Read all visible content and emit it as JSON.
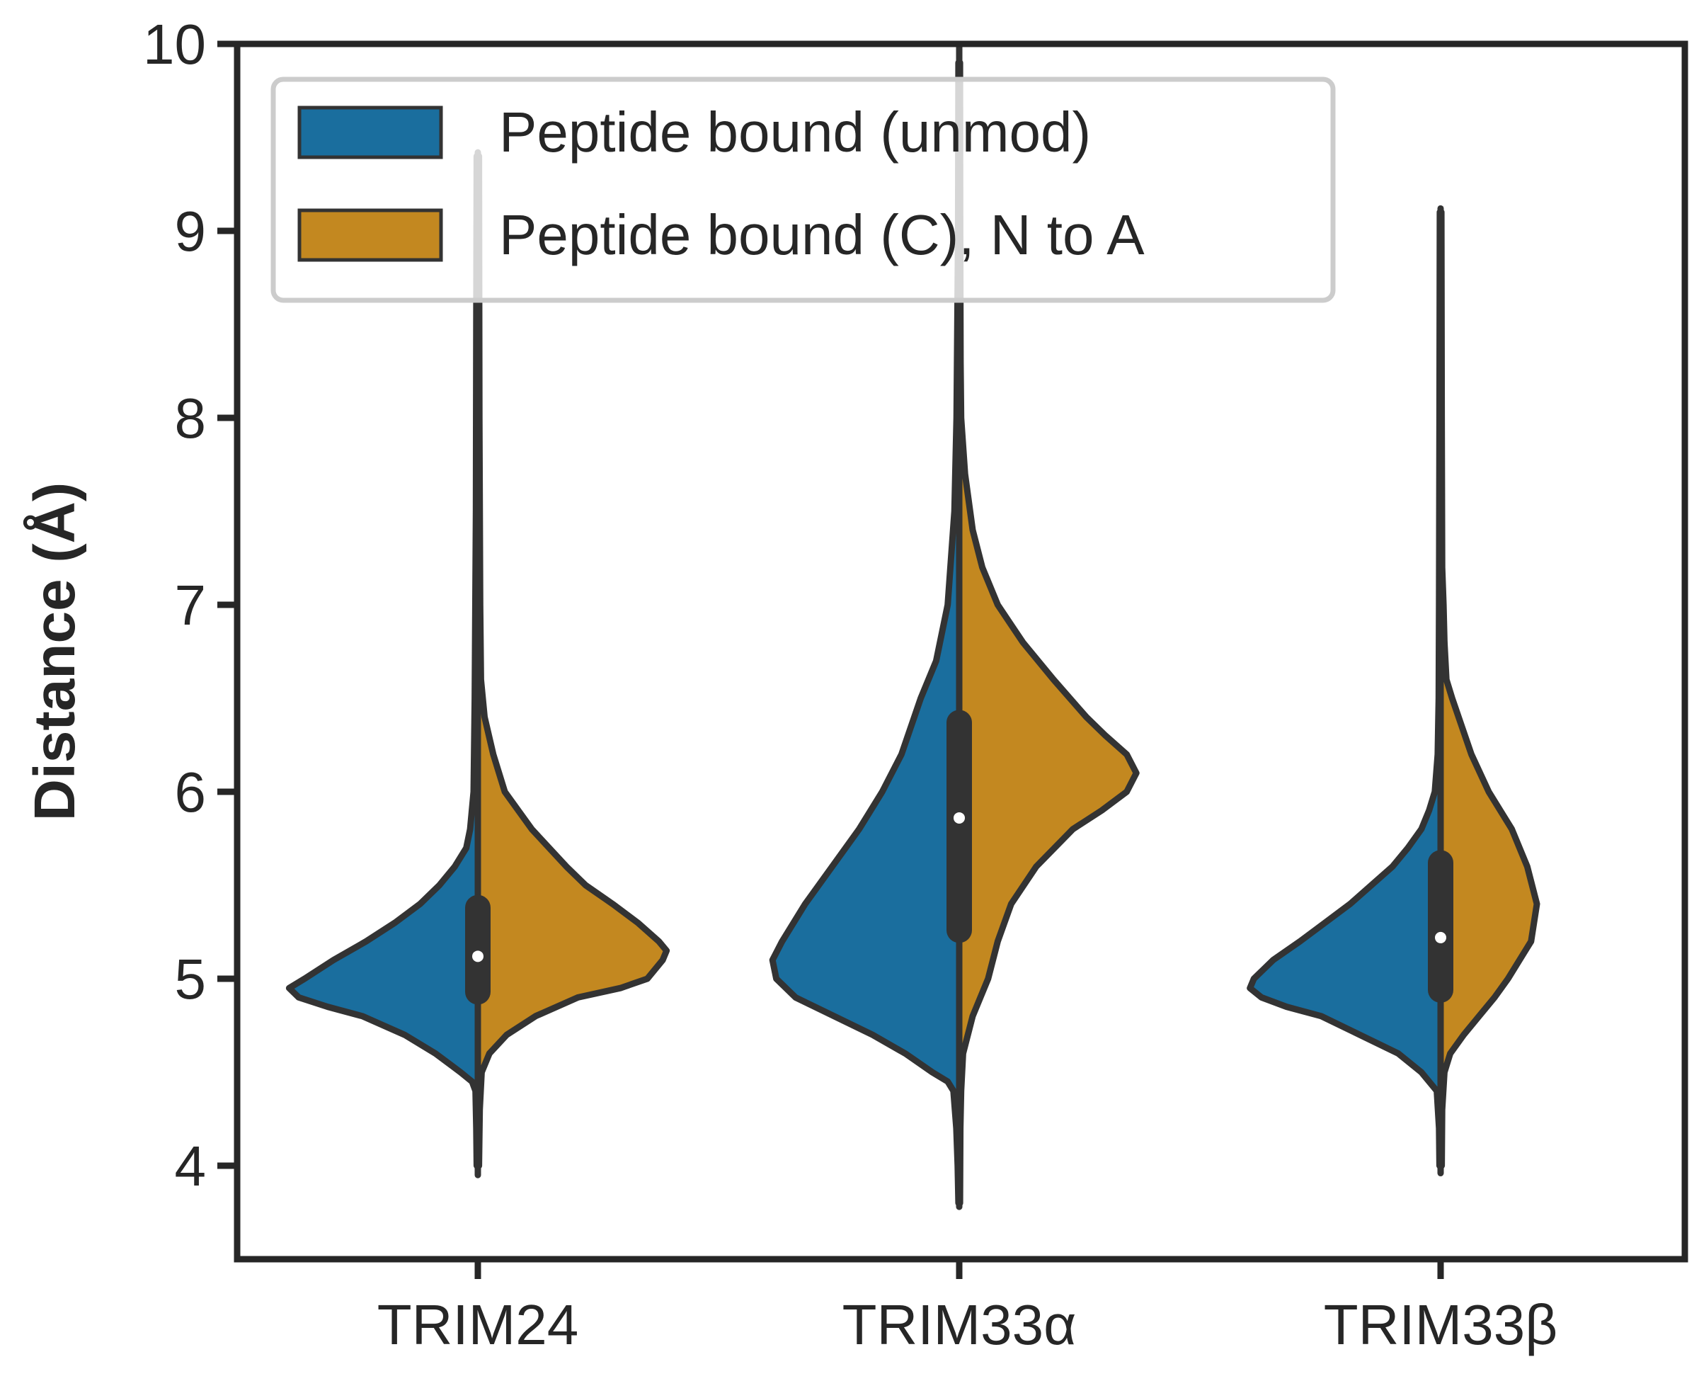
{
  "chart_data": {
    "type": "violin",
    "title": "",
    "xlabel": "",
    "ylabel": "Distance (Å)",
    "ylim": [
      3.5,
      10
    ],
    "yticks": [
      "4",
      "5",
      "6",
      "7",
      "8",
      "9",
      "10"
    ],
    "categories": [
      "TRIM24",
      "TRIM33α",
      "TRIM33β"
    ],
    "split": true,
    "legend_position": "top-left",
    "grid": false,
    "series": [
      {
        "name": "Peptide bound (unmod)",
        "color": "#1a6e9e",
        "min": [
          3.95,
          3.78,
          3.96
        ],
        "max": [
          9.42,
          10.0,
          9.12
        ],
        "density": [
          [
            [
              9.4,
              0.006
            ],
            [
              8.5,
              0.008
            ],
            [
              7.5,
              0.01
            ],
            [
              6.5,
              0.016
            ],
            [
              6.0,
              0.022
            ],
            [
              5.8,
              0.04
            ],
            [
              5.7,
              0.06
            ],
            [
              5.6,
              0.12
            ],
            [
              5.5,
              0.2
            ],
            [
              5.4,
              0.3
            ],
            [
              5.3,
              0.43
            ],
            [
              5.2,
              0.58
            ],
            [
              5.1,
              0.75
            ],
            [
              5.0,
              0.9
            ],
            [
              4.95,
              0.98
            ],
            [
              4.9,
              0.93
            ],
            [
              4.85,
              0.78
            ],
            [
              4.8,
              0.6
            ],
            [
              4.7,
              0.38
            ],
            [
              4.6,
              0.22
            ],
            [
              4.5,
              0.09
            ],
            [
              4.45,
              0.03
            ],
            [
              4.4,
              0.012
            ],
            [
              4.2,
              0.008
            ],
            [
              4.0,
              0.006
            ]
          ],
          [
            [
              9.9,
              0.004
            ],
            [
              9.0,
              0.006
            ],
            [
              8.0,
              0.014
            ],
            [
              7.5,
              0.025
            ],
            [
              7.0,
              0.06
            ],
            [
              6.7,
              0.12
            ],
            [
              6.5,
              0.2
            ],
            [
              6.2,
              0.3
            ],
            [
              6.0,
              0.4
            ],
            [
              5.8,
              0.52
            ],
            [
              5.6,
              0.66
            ],
            [
              5.4,
              0.8
            ],
            [
              5.2,
              0.92
            ],
            [
              5.1,
              0.97
            ],
            [
              5.0,
              0.95
            ],
            [
              4.9,
              0.85
            ],
            [
              4.8,
              0.65
            ],
            [
              4.7,
              0.45
            ],
            [
              4.6,
              0.28
            ],
            [
              4.5,
              0.14
            ],
            [
              4.45,
              0.06
            ],
            [
              4.4,
              0.03
            ],
            [
              4.2,
              0.015
            ],
            [
              4.0,
              0.008
            ],
            [
              3.8,
              0.004
            ]
          ],
          [
            [
              9.1,
              0.004
            ],
            [
              8.0,
              0.006
            ],
            [
              7.0,
              0.008
            ],
            [
              6.5,
              0.01
            ],
            [
              6.2,
              0.015
            ],
            [
              6.0,
              0.03
            ],
            [
              5.9,
              0.06
            ],
            [
              5.8,
              0.1
            ],
            [
              5.7,
              0.17
            ],
            [
              5.6,
              0.25
            ],
            [
              5.5,
              0.36
            ],
            [
              5.4,
              0.47
            ],
            [
              5.3,
              0.6
            ],
            [
              5.2,
              0.73
            ],
            [
              5.1,
              0.87
            ],
            [
              5.0,
              0.97
            ],
            [
              4.95,
              0.99
            ],
            [
              4.9,
              0.93
            ],
            [
              4.85,
              0.8
            ],
            [
              4.8,
              0.62
            ],
            [
              4.7,
              0.42
            ],
            [
              4.6,
              0.22
            ],
            [
              4.5,
              0.1
            ],
            [
              4.4,
              0.02
            ],
            [
              4.2,
              0.008
            ],
            [
              4.0,
              0.006
            ]
          ]
        ]
      },
      {
        "name": "Peptide bound (C), N to A",
        "color": "#c38820",
        "min": [
          3.95,
          3.78,
          3.96
        ],
        "max": [
          9.42,
          10.0,
          9.12
        ],
        "density": [
          [
            [
              9.4,
              0.006
            ],
            [
              8.0,
              0.008
            ],
            [
              7.0,
              0.012
            ],
            [
              6.6,
              0.016
            ],
            [
              6.4,
              0.035
            ],
            [
              6.2,
              0.08
            ],
            [
              6.0,
              0.14
            ],
            [
              5.8,
              0.28
            ],
            [
              5.6,
              0.46
            ],
            [
              5.5,
              0.56
            ],
            [
              5.4,
              0.7
            ],
            [
              5.3,
              0.83
            ],
            [
              5.2,
              0.94
            ],
            [
              5.15,
              0.98
            ],
            [
              5.1,
              0.96
            ],
            [
              5.0,
              0.88
            ],
            [
              4.95,
              0.74
            ],
            [
              4.9,
              0.52
            ],
            [
              4.8,
              0.3
            ],
            [
              4.7,
              0.15
            ],
            [
              4.6,
              0.06
            ],
            [
              4.5,
              0.02
            ],
            [
              4.3,
              0.01
            ],
            [
              4.0,
              0.006
            ]
          ],
          [
            [
              9.9,
              0.004
            ],
            [
              9.0,
              0.005
            ],
            [
              8.3,
              0.007
            ],
            [
              8.0,
              0.01
            ],
            [
              7.7,
              0.03
            ],
            [
              7.4,
              0.07
            ],
            [
              7.2,
              0.12
            ],
            [
              7.0,
              0.2
            ],
            [
              6.8,
              0.33
            ],
            [
              6.6,
              0.49
            ],
            [
              6.4,
              0.66
            ],
            [
              6.3,
              0.76
            ],
            [
              6.2,
              0.87
            ],
            [
              6.1,
              0.92
            ],
            [
              6.0,
              0.87
            ],
            [
              5.9,
              0.74
            ],
            [
              5.8,
              0.59
            ],
            [
              5.6,
              0.4
            ],
            [
              5.4,
              0.27
            ],
            [
              5.2,
              0.2
            ],
            [
              5.0,
              0.15
            ],
            [
              4.8,
              0.07
            ],
            [
              4.6,
              0.02
            ],
            [
              4.4,
              0.01
            ],
            [
              4.2,
              0.006
            ],
            [
              3.8,
              0.004
            ]
          ],
          [
            [
              9.1,
              0.004
            ],
            [
              8.0,
              0.006
            ],
            [
              7.2,
              0.008
            ],
            [
              7.0,
              0.015
            ],
            [
              6.8,
              0.02
            ],
            [
              6.6,
              0.03
            ],
            [
              6.5,
              0.06
            ],
            [
              6.2,
              0.16
            ],
            [
              6.0,
              0.25
            ],
            [
              5.8,
              0.37
            ],
            [
              5.6,
              0.45
            ],
            [
              5.4,
              0.5
            ],
            [
              5.2,
              0.47
            ],
            [
              5.0,
              0.35
            ],
            [
              4.9,
              0.28
            ],
            [
              4.8,
              0.2
            ],
            [
              4.7,
              0.12
            ],
            [
              4.6,
              0.05
            ],
            [
              4.5,
              0.02
            ],
            [
              4.3,
              0.008
            ],
            [
              4.0,
              0.006
            ]
          ]
        ]
      }
    ],
    "boxplot": [
      {
        "q1": 4.93,
        "median": 5.12,
        "q3": 5.38
      },
      {
        "q1": 5.26,
        "median": 5.86,
        "q3": 6.37
      },
      {
        "q1": 4.94,
        "median": 5.22,
        "q3": 5.62
      }
    ]
  }
}
